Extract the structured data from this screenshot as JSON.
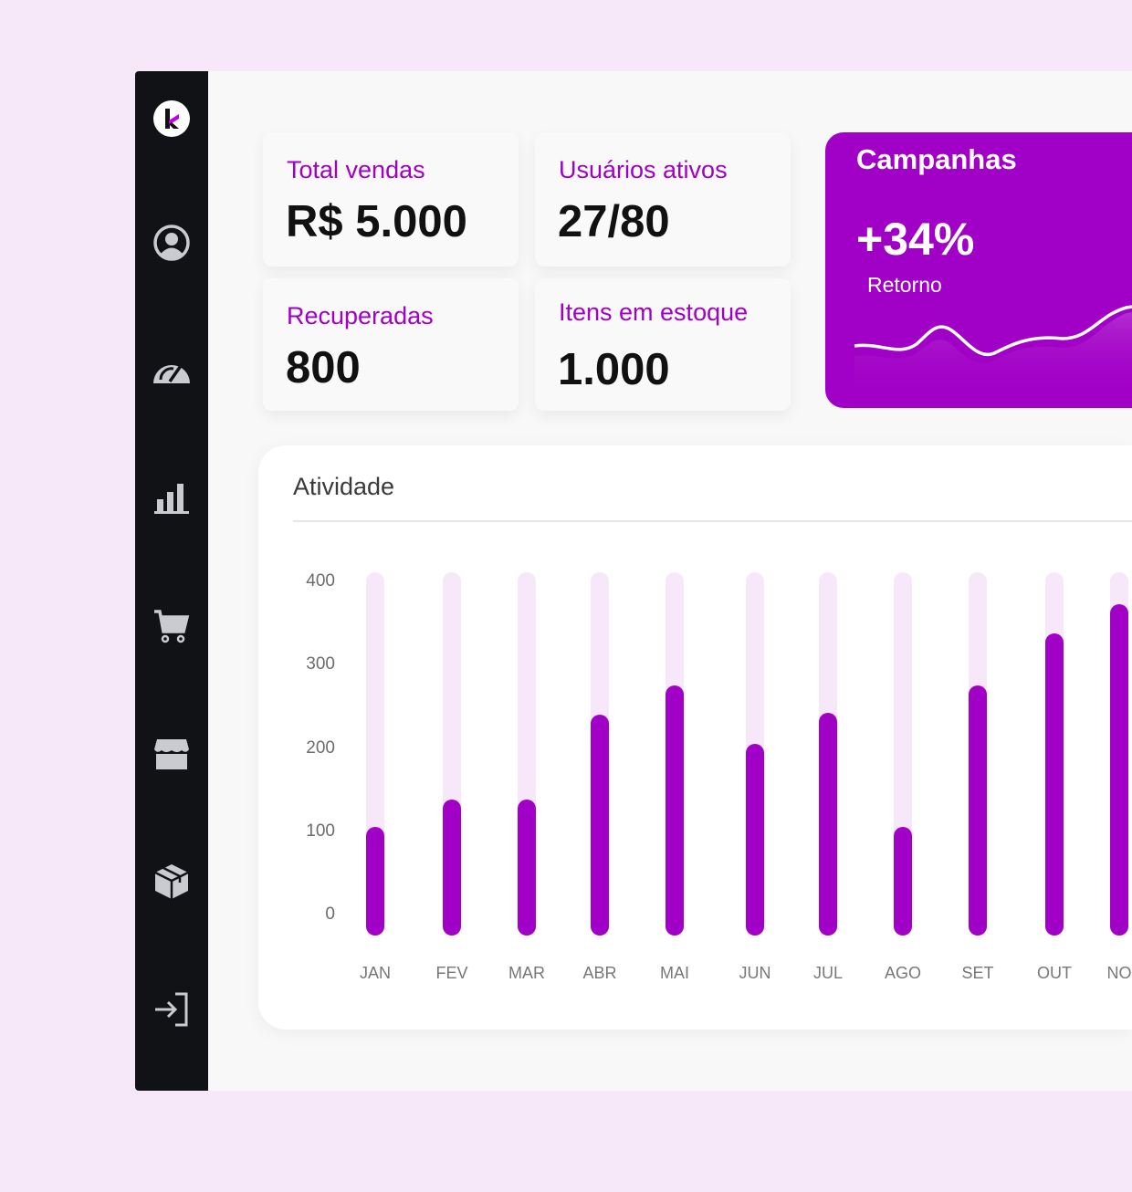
{
  "sidebar": {
    "items": [
      {
        "icon": "logo"
      },
      {
        "icon": "user-circle-icon"
      },
      {
        "icon": "speedometer-icon"
      },
      {
        "icon": "bar-chart-icon"
      },
      {
        "icon": "cart-icon"
      },
      {
        "icon": "store-icon"
      },
      {
        "icon": "package-icon"
      },
      {
        "icon": "logout-icon"
      }
    ]
  },
  "stats": [
    {
      "label": "Total vendas",
      "value": "R$ 5.000"
    },
    {
      "label": "Usuários ativos",
      "value": "27/80"
    },
    {
      "label": "Recuperadas",
      "value": "800"
    },
    {
      "label": "Itens em estoque",
      "value": "1.000"
    }
  ],
  "campaign": {
    "title": "Campanhas",
    "value": "+34%",
    "subtitle": "Retorno",
    "color": "#a100c6"
  },
  "activity": {
    "title": "Atividade"
  },
  "chart_data": {
    "type": "bar",
    "categories": [
      "JAN",
      "FEV",
      "MAR",
      "ABR",
      "MAI",
      "JUN",
      "JUL",
      "AGO",
      "SET",
      "OUT",
      "NO"
    ],
    "values": [
      120,
      150,
      150,
      243,
      275,
      211,
      245,
      120,
      275,
      333,
      365
    ],
    "yticks": [
      "400",
      "300",
      "200",
      "100",
      "0"
    ],
    "ylim": [
      0,
      400
    ],
    "grid": false,
    "bar_color": "#a100c6",
    "track_color": "#f6e8f9"
  }
}
